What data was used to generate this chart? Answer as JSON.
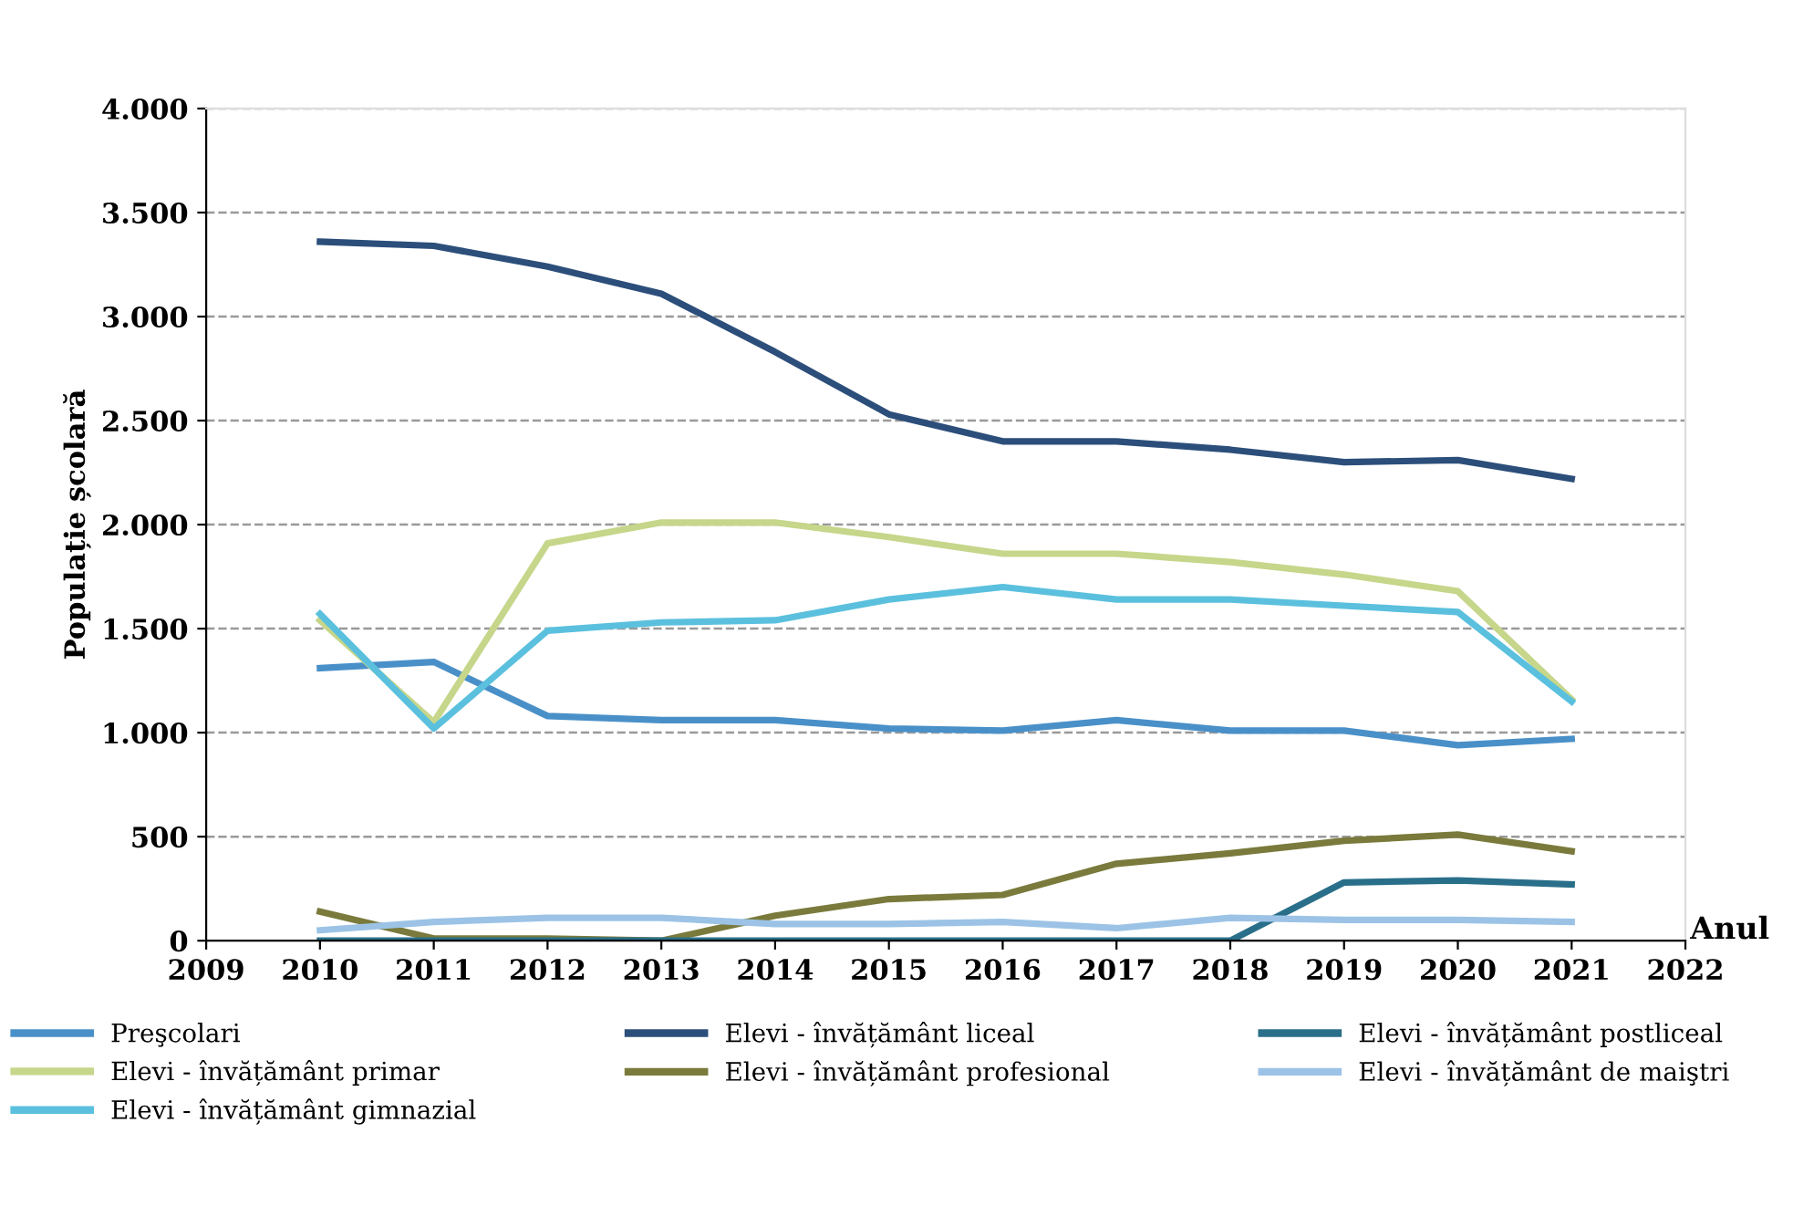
{
  "chart_data": {
    "type": "line",
    "xlabel": "Anul",
    "ylabel": "Populație școlară",
    "x": [
      2010,
      2011,
      2012,
      2013,
      2014,
      2015,
      2016,
      2017,
      2018,
      2019,
      2020,
      2021
    ],
    "series": [
      {
        "name": "Preşcolari",
        "color": "#4a90c8",
        "values": [
          1310,
          1340,
          1080,
          1060,
          1060,
          1020,
          1010,
          1060,
          1010,
          1010,
          940,
          970
        ]
      },
      {
        "name": "Elevi - învățământ primar",
        "color": "#c6d68a",
        "values": [
          1540,
          1050,
          1910,
          2010,
          2010,
          1940,
          1860,
          1860,
          1820,
          1760,
          1680,
          1160
        ]
      },
      {
        "name": "Elevi - învățământ gimnazial",
        "color": "#5bc0de",
        "values": [
          1570,
          1020,
          1490,
          1530,
          1540,
          1640,
          1700,
          1640,
          1640,
          1610,
          1580,
          1150
        ]
      },
      {
        "name": "Elevi - învățământ liceal",
        "color": "#2c4e7a",
        "values": [
          3360,
          3340,
          3240,
          3110,
          2830,
          2530,
          2400,
          2400,
          2360,
          2300,
          2310,
          2220
        ]
      },
      {
        "name": "Elevi - învățământ profesional",
        "color": "#7a7a3c",
        "values": [
          140,
          10,
          10,
          0,
          120,
          200,
          220,
          370,
          420,
          480,
          510,
          430
        ]
      },
      {
        "name": "Elevi - învățământ postliceal",
        "color": "#2a6f8a",
        "values": [
          0,
          0,
          0,
          0,
          0,
          0,
          0,
          0,
          0,
          280,
          290,
          270
        ]
      },
      {
        "name": "Elevi - învățământ de maiştri",
        "color": "#9cc3e6",
        "values": [
          50,
          90,
          110,
          110,
          80,
          80,
          90,
          60,
          110,
          100,
          100,
          90
        ]
      }
    ],
    "xlim": [
      2009,
      2022
    ],
    "xticks": [
      2009,
      2010,
      2011,
      2012,
      2013,
      2014,
      2015,
      2016,
      2017,
      2018,
      2019,
      2020,
      2021,
      2022
    ],
    "ylim": [
      0,
      4000
    ],
    "yticks": [
      0,
      500,
      {
        "value": 1000,
        "label": "1.000"
      },
      {
        "value": 1500,
        "label": "1.500"
      },
      {
        "value": 2000,
        "label": "2.000"
      },
      {
        "value": 2500,
        "label": "2.500"
      },
      {
        "value": 3000,
        "label": "3.000"
      },
      {
        "value": 3500,
        "label": "3.500"
      },
      {
        "value": 4000,
        "label": "4.000"
      }
    ],
    "grid": "y",
    "legend": "bottom",
    "marker": "none",
    "line_style": "solid"
  }
}
